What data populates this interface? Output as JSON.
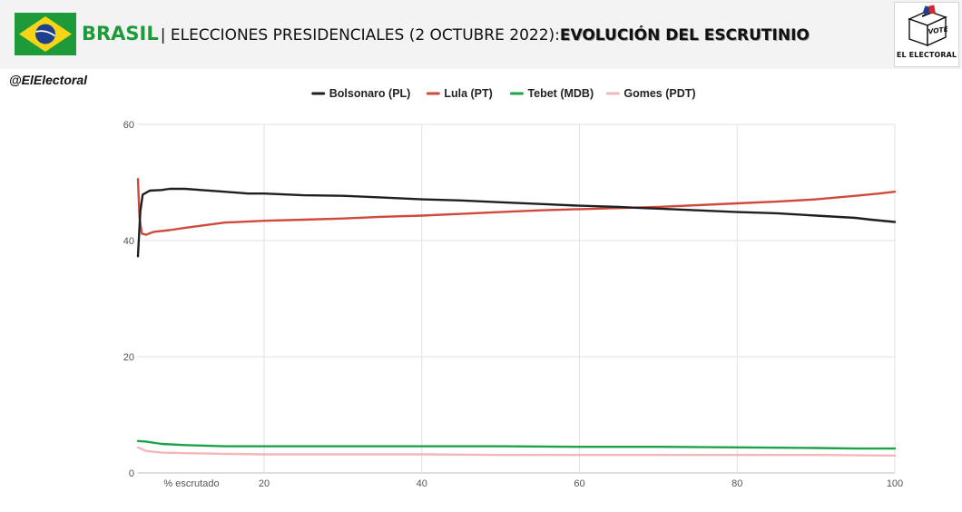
{
  "header": {
    "country": "BRASIL",
    "title_rest": "| ELECCIONES PRESIDENCIALES (2 OCTUBRE 2022): ",
    "title_highlight": "EVOLUCIÓN DEL ESCRUTINIO",
    "logo_vote_text": "VOTE",
    "logo_caption": "EL ELECTORAL",
    "flag_colors": {
      "green": "#1f9a3a",
      "yellow": "#f7d417",
      "blue": "#1e3f8c"
    }
  },
  "source_handle": "@ElElectoral",
  "chart_data": {
    "type": "line",
    "xlabel": "% escrutado",
    "ylabel": "",
    "title": "",
    "xlim": [
      4,
      100
    ],
    "ylim": [
      0,
      60
    ],
    "x_ticks": [
      20,
      40,
      60,
      80,
      100
    ],
    "y_ticks": [
      0,
      20,
      40,
      60
    ],
    "grid": true,
    "legend_position": "top",
    "series": [
      {
        "name": "Bolsonaro (PL)",
        "color": "#1f1f1f",
        "points": [
          [
            4,
            37.3
          ],
          [
            4.3,
            45.0
          ],
          [
            4.6,
            47.9
          ],
          [
            5.5,
            48.6
          ],
          [
            7,
            48.7
          ],
          [
            8,
            48.9
          ],
          [
            10,
            48.9
          ],
          [
            12,
            48.7
          ],
          [
            15,
            48.4
          ],
          [
            18,
            48.1
          ],
          [
            20,
            48.1
          ],
          [
            25,
            47.8
          ],
          [
            30,
            47.7
          ],
          [
            35,
            47.4
          ],
          [
            40,
            47.1
          ],
          [
            45,
            46.9
          ],
          [
            50,
            46.6
          ],
          [
            55,
            46.3
          ],
          [
            60,
            46.0
          ],
          [
            65,
            45.8
          ],
          [
            68,
            45.6
          ],
          [
            70,
            45.5
          ],
          [
            75,
            45.2
          ],
          [
            80,
            44.9
          ],
          [
            85,
            44.7
          ],
          [
            90,
            44.3
          ],
          [
            95,
            43.9
          ],
          [
            97,
            43.6
          ],
          [
            100,
            43.2
          ]
        ]
      },
      {
        "name": "Lula (PT)",
        "color": "#d04a3c",
        "points": [
          [
            4,
            50.6
          ],
          [
            4.2,
            44.0
          ],
          [
            4.5,
            41.2
          ],
          [
            5,
            41.0
          ],
          [
            6,
            41.5
          ],
          [
            8,
            41.8
          ],
          [
            10,
            42.2
          ],
          [
            15,
            43.1
          ],
          [
            20,
            43.4
          ],
          [
            25,
            43.6
          ],
          [
            30,
            43.8
          ],
          [
            35,
            44.1
          ],
          [
            40,
            44.3
          ],
          [
            45,
            44.6
          ],
          [
            50,
            44.9
          ],
          [
            55,
            45.2
          ],
          [
            60,
            45.4
          ],
          [
            65,
            45.6
          ],
          [
            68,
            45.7
          ],
          [
            70,
            45.8
          ],
          [
            75,
            46.1
          ],
          [
            80,
            46.4
          ],
          [
            85,
            46.7
          ],
          [
            90,
            47.1
          ],
          [
            95,
            47.7
          ],
          [
            98,
            48.1
          ],
          [
            100,
            48.4
          ]
        ]
      },
      {
        "name": "Tebet (MDB)",
        "color": "#1fa149",
        "points": [
          [
            4,
            5.5
          ],
          [
            5,
            5.4
          ],
          [
            7,
            5.0
          ],
          [
            10,
            4.8
          ],
          [
            15,
            4.6
          ],
          [
            20,
            4.6
          ],
          [
            30,
            4.6
          ],
          [
            40,
            4.6
          ],
          [
            50,
            4.6
          ],
          [
            60,
            4.5
          ],
          [
            70,
            4.5
          ],
          [
            80,
            4.4
          ],
          [
            90,
            4.3
          ],
          [
            95,
            4.2
          ],
          [
            100,
            4.2
          ]
        ]
      },
      {
        "name": "Gomes (PDT)",
        "color": "#f2b8b8",
        "points": [
          [
            4,
            4.4
          ],
          [
            5,
            3.8
          ],
          [
            7,
            3.5
          ],
          [
            10,
            3.4
          ],
          [
            15,
            3.3
          ],
          [
            20,
            3.2
          ],
          [
            30,
            3.2
          ],
          [
            40,
            3.2
          ],
          [
            50,
            3.1
          ],
          [
            60,
            3.1
          ],
          [
            70,
            3.1
          ],
          [
            80,
            3.1
          ],
          [
            90,
            3.1
          ],
          [
            100,
            3.0
          ]
        ]
      }
    ]
  }
}
